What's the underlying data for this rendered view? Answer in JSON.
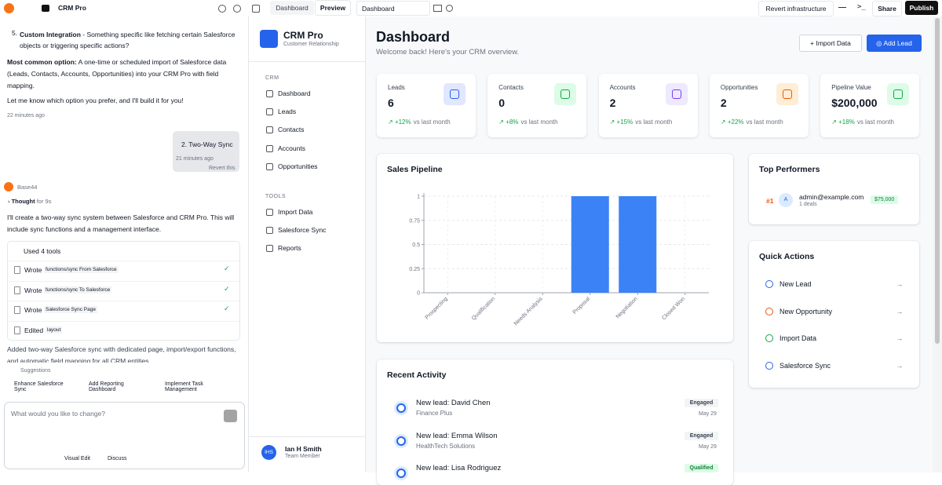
{
  "topbar": {
    "project": "CRM Pro",
    "tabs": [
      "Dashboard",
      "Preview"
    ],
    "page_select": "Dashboard",
    "revert": "Revert infrastructure",
    "share": "Share",
    "publish": "Publish"
  },
  "chat": {
    "list_item": {
      "marker": "5.",
      "title": "Custom Integration",
      "text": " - Something specific like fetching certain Salesforce objects or triggering specific actions?"
    },
    "option": {
      "label": "Most common option:",
      "text": " A one-time or scheduled import of Salesforce data (Leads, Contacts, Accounts, Opportunities) into your CRM Pro with field mapping."
    },
    "prompt": "Let me know which option you prefer, and I'll build it for you!",
    "time": "22 minutes ago",
    "user_message": {
      "text": "2. Two-Way Sync",
      "time": "21 minutes ago",
      "revert": "Revert this"
    },
    "agent": "Base44",
    "thought": {
      "label": "Thought",
      "duration": "for 9s"
    },
    "reply": "I'll create a two-way sync system between Salesforce and CRM Pro. This will include sync functions and a management interface.",
    "tools": {
      "title": "Used 4 tools",
      "items": [
        {
          "action": "Wrote",
          "target": "functions/sync From Salesforce"
        },
        {
          "action": "Wrote",
          "target": "functions/sync To Salesforce"
        },
        {
          "action": "Wrote",
          "target": "Salesforce Sync Page"
        },
        {
          "action": "Edited",
          "target": "layout"
        }
      ]
    },
    "summary": "Added two-way Salesforce sync with dedicated page, import/export functions, and automatic field mapping for all CRM entities.",
    "suggestions": {
      "title": "Suggestions",
      "items": [
        "Enhance Salesforce Sync",
        "Add Reporting Dashboard",
        "Implement Task Management"
      ]
    },
    "input": {
      "placeholder": "What would you like to change?",
      "visual_edit": "Visual Edit",
      "discuss": "Discuss"
    }
  },
  "sidebar": {
    "app_name": "CRM Pro",
    "app_subtitle": "Customer Relationship",
    "sections": [
      {
        "title": "CRM",
        "items": [
          "Dashboard",
          "Leads",
          "Contacts",
          "Accounts",
          "Opportunities"
        ]
      },
      {
        "title": "TOOLS",
        "items": [
          "Import Data",
          "Salesforce Sync",
          "Reports"
        ]
      }
    ],
    "user": {
      "initials": "IHS",
      "name": "Ian H Smith",
      "role": "Team Member"
    }
  },
  "main": {
    "title": "Dashboard",
    "subtitle": "Welcome back! Here's your CRM overview.",
    "buttons": [
      "Import Data",
      "Add Lead"
    ],
    "stats": [
      {
        "label": "Leads",
        "value": "6",
        "change": "+12%",
        "note": "vs last month"
      },
      {
        "label": "Contacts",
        "value": "0",
        "change": "+8%",
        "note": "vs last month"
      },
      {
        "label": "Accounts",
        "value": "2",
        "change": "+15%",
        "note": "vs last month"
      },
      {
        "label": "Opportunities",
        "value": "2",
        "change": "+22%",
        "note": "vs last month"
      },
      {
        "label": "Pipeline Value",
        "value": "$200,000",
        "change": "+18%",
        "note": "vs last month"
      }
    ],
    "top_performers": {
      "title": "Top Performers",
      "items": [
        {
          "rank": "#1",
          "avatar": "A",
          "name": "admin@example.com",
          "deals": "1 deals",
          "amount": "$75,000"
        }
      ]
    },
    "quick_actions": {
      "title": "Quick Actions",
      "items": [
        "New Lead",
        "New Opportunity",
        "Import Data",
        "Salesforce Sync"
      ]
    },
    "recent_activity": {
      "title": "Recent Activity",
      "items": [
        {
          "title": "New lead: David Chen",
          "company": "Finance Plus",
          "badge": "Engaged",
          "date": "May 29"
        },
        {
          "title": "New lead: Emma Wilson",
          "company": "HealthTech Solutions",
          "badge": "Engaged",
          "date": "May 29"
        },
        {
          "title": "New lead: Lisa Rodriguez",
          "badge": "Qualified"
        }
      ]
    }
  },
  "chart_data": {
    "type": "bar",
    "title": "Sales Pipeline",
    "categories": [
      "Prospecting",
      "Qualification",
      "Needs Analysis",
      "Proposal",
      "Negotiation",
      "Closed Won"
    ],
    "values": [
      0,
      0,
      0,
      1,
      1,
      0
    ],
    "color": "#3b82f6",
    "ylim": [
      0,
      1
    ],
    "yticks": [
      0,
      0.25,
      0.5,
      0.75,
      1
    ],
    "grid": true
  }
}
